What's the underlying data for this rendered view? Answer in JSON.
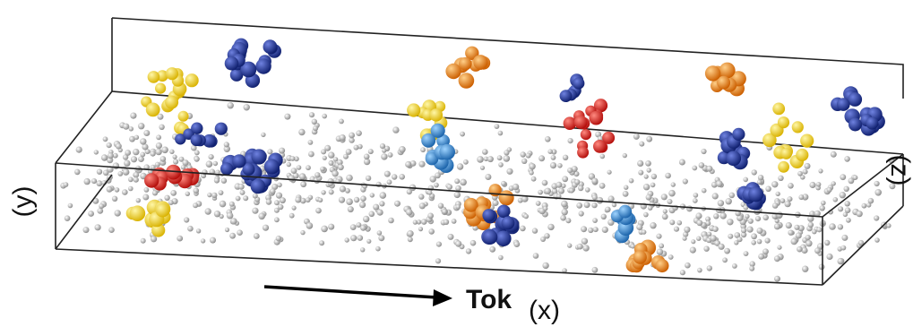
{
  "labels": {
    "y_axis": "(y)",
    "z_axis": "(z)",
    "x_axis": "(x)",
    "current": "Tok"
  },
  "colors": {
    "background_particle": "#bdbdbd",
    "dark_blue": "#1a2f93",
    "light_blue": "#2f86cf",
    "yellow": "#f2d21b",
    "orange": "#ee8a1c",
    "red": "#e52420",
    "box_edge": "#222222"
  }
}
